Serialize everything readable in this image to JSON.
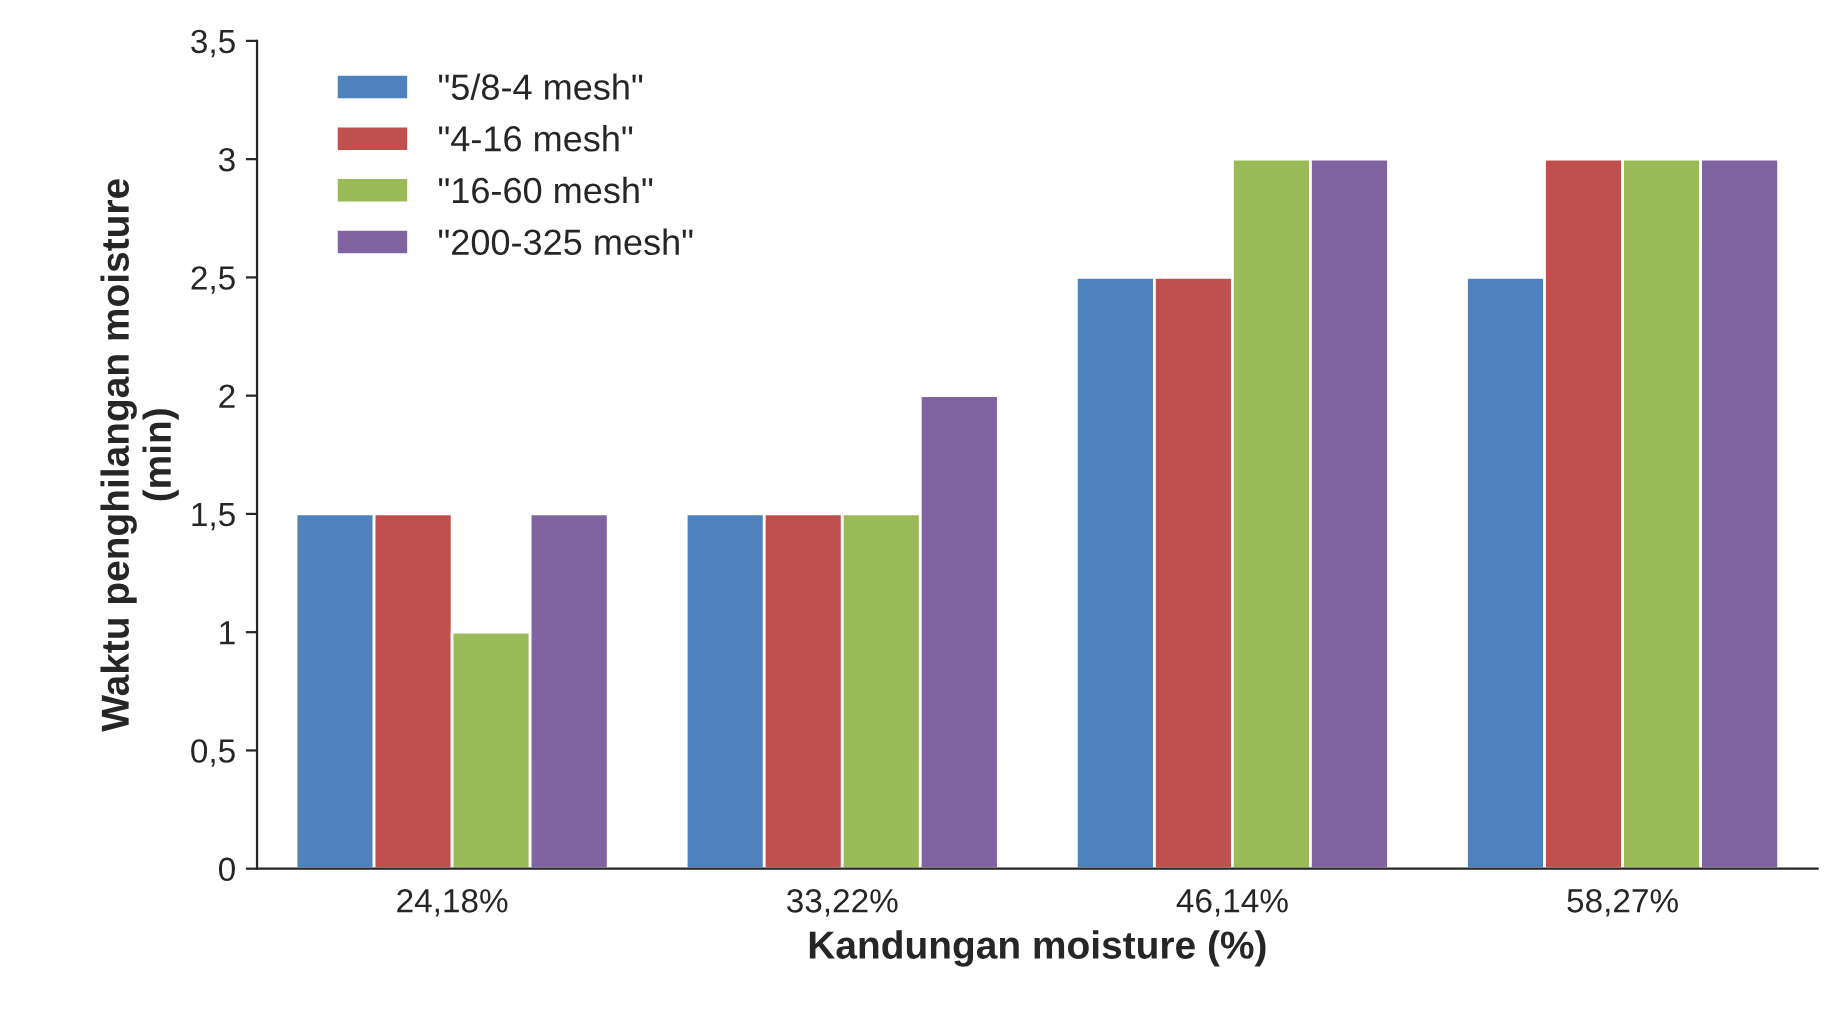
{
  "chart_data": {
    "type": "bar",
    "xlabel": "Kandungan moisture (%)",
    "ylabel": "Waktu penghilangan moisture\n(min)",
    "categories": [
      "24,18%",
      "33,22%",
      "46,14%",
      "58,27%"
    ],
    "series": [
      {
        "name": "\"5/8-4 mesh\"",
        "color": "#4f81bd",
        "values": [
          1.5,
          1.5,
          2.5,
          2.5
        ]
      },
      {
        "name": "\"4-16 mesh\"",
        "color": "#c0504d",
        "values": [
          1.5,
          1.5,
          2.5,
          3
        ]
      },
      {
        "name": "\"16-60 mesh\"",
        "color": "#9bbb59",
        "values": [
          1,
          1.5,
          3,
          3
        ]
      },
      {
        "name": "\"200-325 mesh\"",
        "color": "#8064a2",
        "values": [
          1.5,
          2,
          3,
          3
        ]
      }
    ],
    "ylim": [
      0,
      3.5
    ],
    "yticks": [
      0,
      {
        "value": 0.5,
        "label": "0,5"
      },
      1,
      {
        "value": 1.5,
        "label": "1,5"
      },
      2,
      {
        "value": 2.5,
        "label": "2,5"
      },
      3,
      {
        "value": 3.5,
        "label": "3,5"
      }
    ],
    "grid": false,
    "legend": "top left"
  }
}
